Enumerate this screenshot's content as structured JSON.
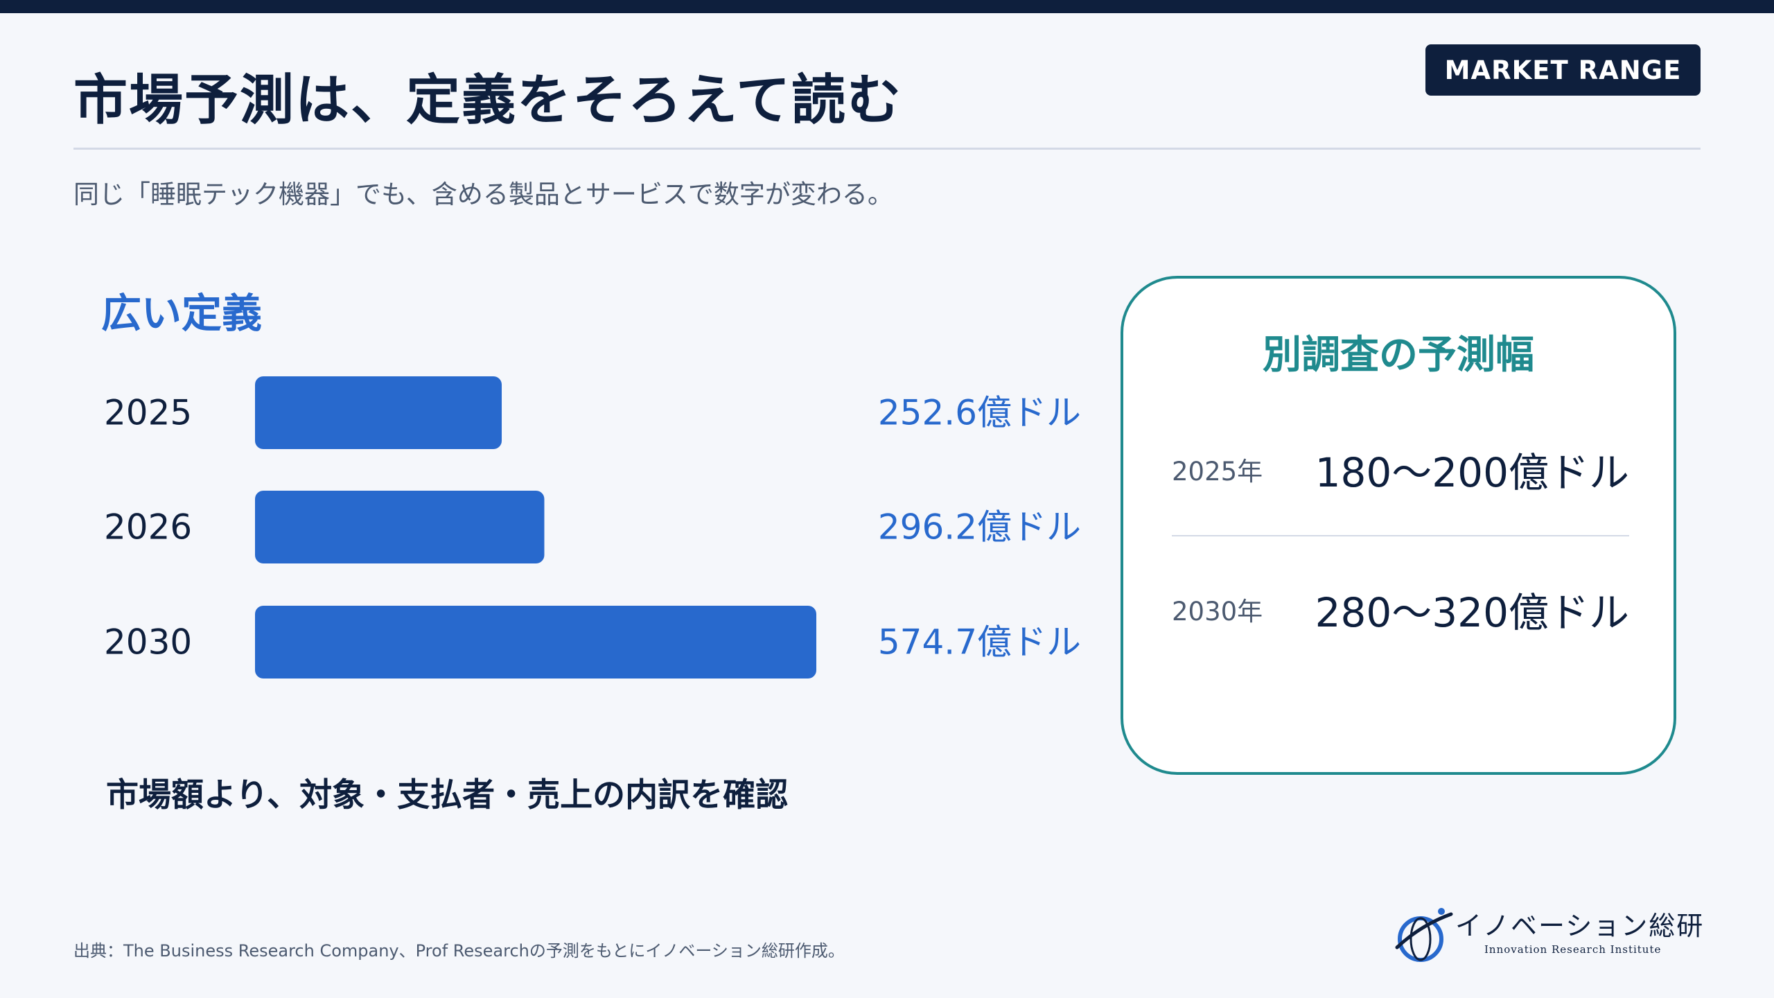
{
  "header": {
    "title": "市場予測は、定義をそろえて読む",
    "badge": "MARKET RANGE",
    "subtitle": "同じ「睡眠テック機器」でも、含める製品とサービスで数字が変わる。"
  },
  "colors": {
    "navy": "#0e1f3d",
    "accent_blue": "#2869cd",
    "teal": "#1f8a8e",
    "background": "#f5f7fb"
  },
  "chart_data": {
    "type": "bar",
    "orientation": "horizontal",
    "title": "広い定義",
    "categories": [
      "2025",
      "2026",
      "2030"
    ],
    "values": [
      252.6,
      296.2,
      574.7
    ],
    "value_labels": [
      "252.6億ドル",
      "296.2億ドル",
      "574.7億ドル"
    ],
    "xlim": [
      0,
      574.7
    ],
    "grid": false,
    "legend": "none"
  },
  "note": "市場額より、対象・支払者・売上の内訳を確認",
  "range_card": {
    "title": "別調査の予測幅",
    "rows": [
      {
        "year": "2025年",
        "value": "180〜200億ドル"
      },
      {
        "year": "2030年",
        "value": "280〜320億ドル"
      }
    ]
  },
  "footer": {
    "source": "出典：The Business Research Company、Prof Researchの予測をもとにイノベーション総研作成。",
    "logo_name": "イノベーション総研",
    "logo_sub": "Innovation Research Institute",
    "logo_icon": "globe-swoosh-icon"
  }
}
